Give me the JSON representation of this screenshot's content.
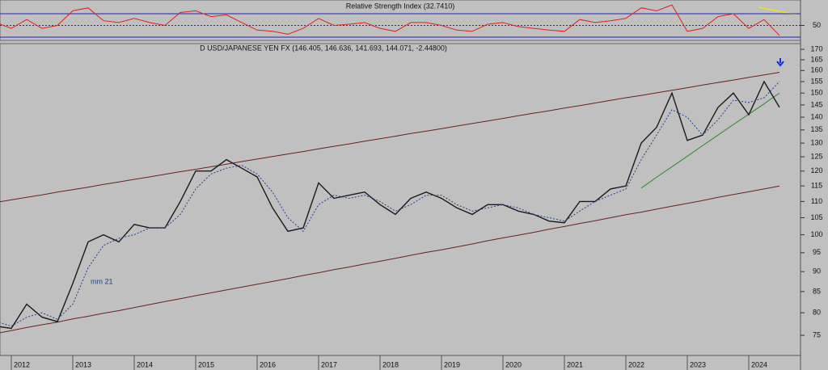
{
  "chart_data": [
    {
      "type": "line",
      "title": "Relative Strength Index (32.7410)",
      "values": [
        55,
        45,
        60,
        45,
        50,
        75,
        80,
        58,
        55,
        62,
        55,
        50,
        72,
        75,
        65,
        68,
        55,
        42,
        40,
        35,
        45,
        62,
        50,
        52,
        55,
        45,
        40,
        55,
        55,
        50,
        42,
        40,
        52,
        55,
        48,
        45,
        42,
        40,
        60,
        55,
        58,
        62,
        80,
        75,
        85,
        40,
        45,
        65,
        70,
        45,
        60,
        32.741
      ],
      "color": "#e02020",
      "ylim": [
        24.5,
        93.4
      ],
      "yticks": [
        50
      ],
      "levels": [
        70,
        30
      ],
      "level_color": "#2020c0"
    },
    {
      "type": "line",
      "title": "D USD/JAPANESE YEN FX (146.405, 146.636, 141.693, 144.071, -2.44800)",
      "categories": [
        null,
        "2012",
        null,
        null,
        null,
        "2013",
        null,
        null,
        null,
        "2014",
        null,
        null,
        null,
        "2015",
        null,
        null,
        null,
        "2016",
        null,
        null,
        null,
        "2017",
        null,
        null,
        null,
        "2018",
        null,
        null,
        null,
        "2019",
        null,
        null,
        null,
        "2020",
        null,
        null,
        null,
        "2021",
        null,
        null,
        null,
        "2022",
        null,
        null,
        null,
        "2023",
        null,
        null,
        null,
        "2024",
        null,
        null
      ],
      "series": [
        {
          "color": "#1a1a1a",
          "values": [
            77,
            76.5,
            82,
            79,
            78,
            87,
            98,
            100,
            98,
            103,
            102,
            102,
            110,
            120,
            120,
            124,
            121,
            118,
            108,
            101,
            102,
            116,
            111,
            112,
            113,
            109,
            106,
            111,
            113,
            111,
            108,
            106,
            109,
            109,
            107,
            106,
            104,
            103.5,
            110,
            110,
            114,
            115,
            130,
            136,
            150,
            131,
            133,
            144,
            150,
            141,
            155,
            144
          ]
        },
        {
          "color": "#1f3f8f",
          "dashed": true,
          "values": [
            78,
            77,
            79,
            80,
            78.5,
            82,
            91,
            97,
            99,
            100,
            102,
            102,
            106,
            114,
            119,
            121,
            122,
            119,
            113,
            105,
            101,
            109,
            112,
            111,
            112,
            110,
            107,
            109,
            112,
            112,
            109,
            107,
            108,
            109,
            108,
            106,
            105,
            104,
            107,
            110,
            112,
            114,
            124,
            133,
            143,
            140,
            133,
            139,
            147,
            146,
            148,
            155
          ]
        }
      ],
      "trendlines": [
        {
          "color": "#6a2020",
          "values": [
            109.7,
            110.5,
            111.3,
            112.1,
            113.0,
            113.8,
            114.6,
            115.5,
            116.3,
            117.2,
            118.0,
            118.9,
            119.8,
            120.6,
            121.5,
            122.4,
            123.3,
            124.2,
            125.1,
            126.0,
            126.9,
            127.9,
            128.8,
            129.7,
            130.7,
            131.6,
            132.6,
            133.6,
            134.5,
            135.5,
            136.5,
            137.5,
            138.5,
            139.5,
            140.6,
            141.6,
            142.6,
            143.7,
            144.7,
            145.8,
            146.9,
            148.0,
            149.0,
            150.1,
            151.2,
            152.3,
            153.5,
            154.6,
            155.7,
            156.9,
            158.0,
            159.2
          ]
        },
        {
          "color": "#6a2020",
          "values": [
            75.4,
            76.0,
            76.7,
            77.3,
            77.9,
            78.6,
            79.2,
            79.9,
            80.5,
            81.2,
            81.9,
            82.6,
            83.3,
            84.0,
            84.7,
            85.4,
            86.1,
            86.8,
            87.5,
            88.2,
            89.0,
            89.7,
            90.5,
            91.2,
            92.0,
            92.7,
            93.5,
            94.3,
            95.1,
            95.8,
            96.6,
            97.4,
            98.3,
            99.1,
            99.9,
            100.7,
            101.6,
            102.4,
            103.3,
            104.1,
            105.0,
            105.9,
            106.7,
            107.6,
            108.5,
            109.4,
            110.3,
            111.3,
            112.2,
            113.1,
            114.0,
            115.0
          ]
        },
        {
          "color": "#2a8a2a",
          "values": [
            null,
            null,
            null,
            null,
            null,
            null,
            null,
            null,
            null,
            null,
            null,
            null,
            null,
            null,
            null,
            null,
            null,
            null,
            null,
            null,
            null,
            null,
            null,
            null,
            null,
            null,
            null,
            null,
            null,
            null,
            null,
            null,
            null,
            null,
            null,
            null,
            null,
            null,
            null,
            null,
            null,
            null,
            114.3,
            117.9,
            121.5,
            125.2,
            129.1,
            133.0,
            137.1,
            141.2,
            145.5,
            150.0
          ]
        }
      ],
      "annotation": "mm 21",
      "log_scale": true,
      "ylim": [
        70.8,
        172.8
      ],
      "yticks": [
        75,
        80,
        85,
        90,
        95,
        100,
        105,
        110,
        115,
        120,
        125,
        130,
        135,
        140,
        145,
        150,
        155,
        160,
        165,
        170
      ]
    }
  ]
}
